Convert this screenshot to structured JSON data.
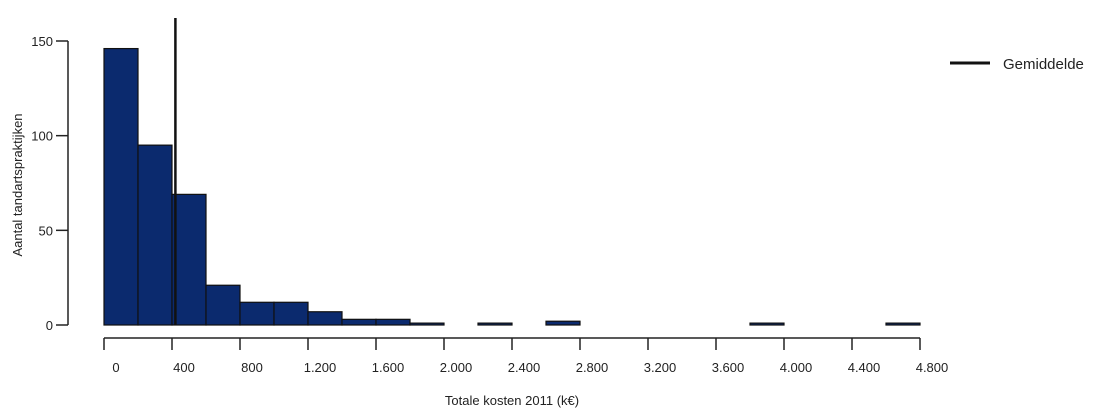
{
  "chart_data": {
    "type": "bar",
    "subtype": "histogram",
    "xlabel": "Totale kosten 2011 (k€)",
    "ylabel": "Aantal tandartspraktijken",
    "bin_edges": [
      0,
      200,
      400,
      600,
      800,
      1000,
      1200,
      1400,
      1600,
      1800,
      2000,
      2200,
      2400,
      2600,
      2800,
      3000,
      3200,
      3400,
      3600,
      3800,
      4000,
      4200,
      4400,
      4600,
      4800
    ],
    "values": [
      146,
      95,
      69,
      21,
      12,
      12,
      7,
      3,
      3,
      1,
      0,
      1,
      0,
      2,
      0,
      0,
      0,
      0,
      0,
      1,
      0,
      0,
      0,
      1
    ],
    "xlim": [
      0,
      4800
    ],
    "ylim": [
      0,
      150
    ],
    "x_ticks": [
      0,
      400,
      800,
      1200,
      1600,
      2000,
      2400,
      2800,
      3200,
      3600,
      4000,
      4400,
      4800
    ],
    "x_tick_labels": [
      "0",
      "400",
      "800",
      "1.200",
      "1.600",
      "2.000",
      "2.400",
      "2.800",
      "3.200",
      "3.600",
      "4.000",
      "4.400",
      "4.800"
    ],
    "y_ticks": [
      0,
      50,
      100,
      150
    ],
    "y_tick_labels": [
      "0",
      "50",
      "100",
      "150"
    ],
    "mean_line": {
      "x": 420,
      "label": "Gemiddelde"
    },
    "legend_position": "top-right",
    "grid": false,
    "bar_color": "#0b2a6e",
    "bar_edge_color": "#111111",
    "line_color": "#111111"
  }
}
